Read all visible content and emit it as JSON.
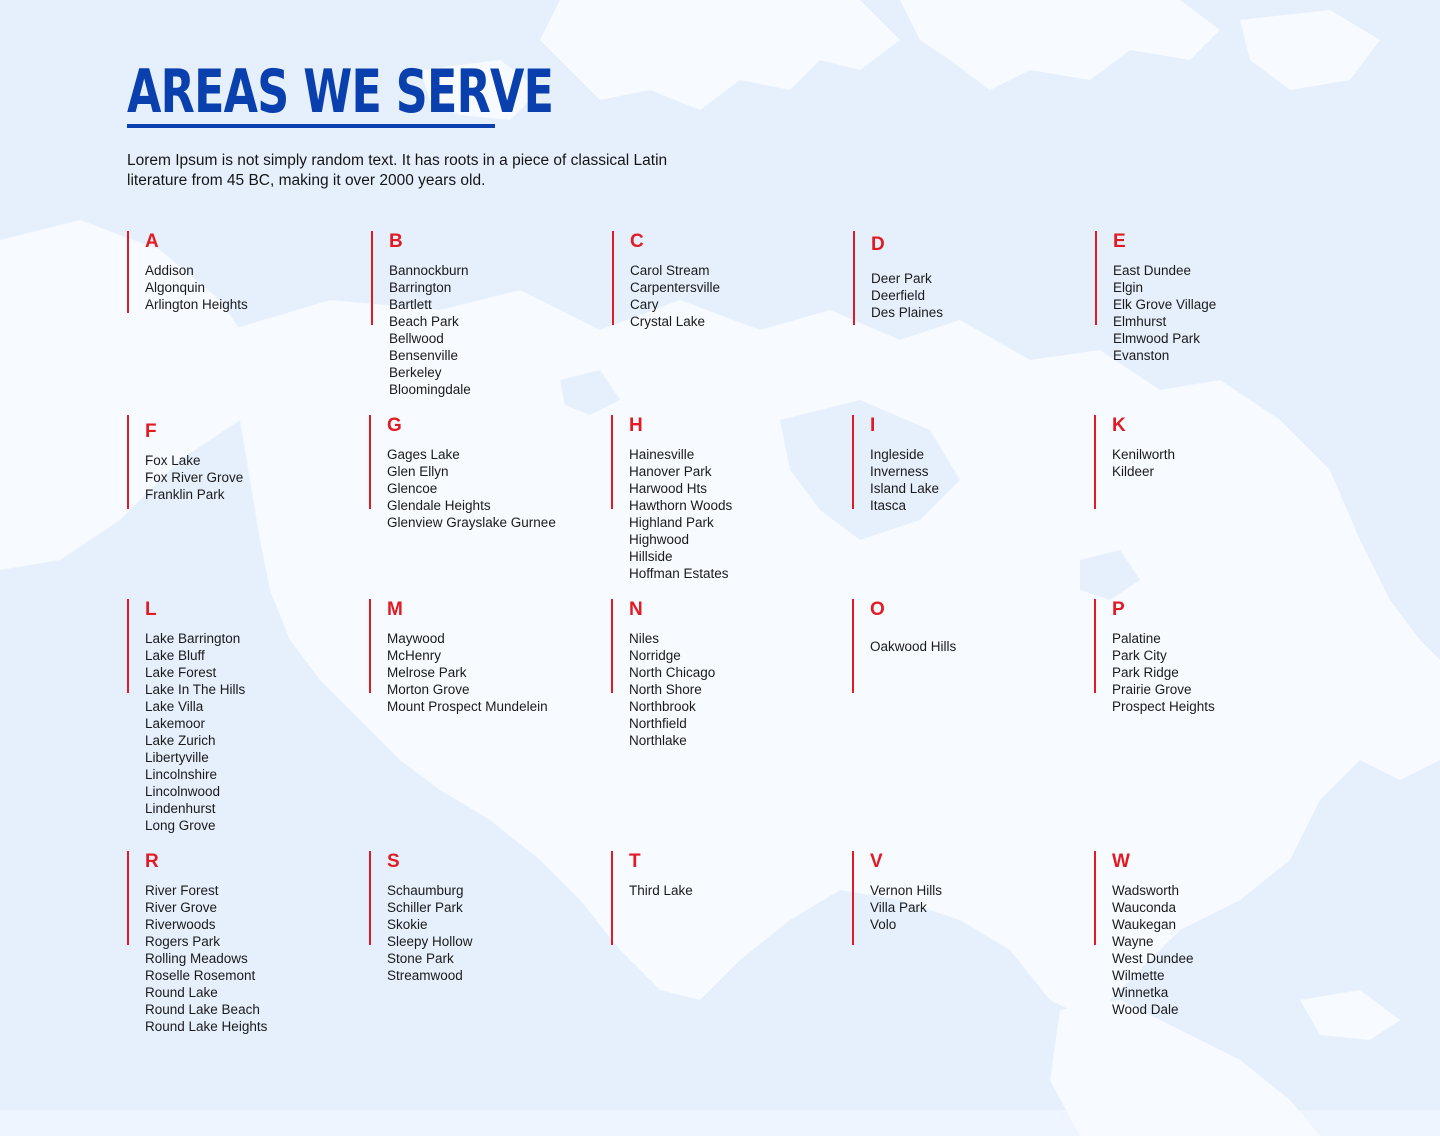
{
  "page": {
    "title": "AREAS WE SERVE",
    "intro": "Lorem Ipsum is not simply random text. It has roots in a piece of classical Latin literature from 45 BC, making it over 2000 years old."
  },
  "colors": {
    "title": "#0a3fae",
    "accent": "#e11b23",
    "background": "#e6f0fd",
    "map_land": "#f7faff"
  },
  "groups": [
    {
      "letter": "A",
      "places": [
        "Addison",
        "Algonquin",
        "Arlington Heights"
      ]
    },
    {
      "letter": "B",
      "places": [
        "Bannockburn",
        "Barrington",
        "Bartlett",
        "Beach Park",
        "Bellwood",
        "Bensenville",
        "Berkeley",
        "Bloomingdale"
      ]
    },
    {
      "letter": "C",
      "places": [
        "Carol Stream",
        "Carpentersville",
        "Cary",
        "Crystal Lake"
      ]
    },
    {
      "letter": "D",
      "places": [
        "Deer Park",
        "Deerfield",
        "Des Plaines"
      ]
    },
    {
      "letter": "E",
      "places": [
        "East Dundee",
        "Elgin",
        "Elk Grove Village",
        "Elmhurst",
        "Elmwood Park",
        "Evanston"
      ]
    },
    {
      "letter": "F",
      "places": [
        "Fox Lake",
        "Fox River Grove",
        "Franklin Park"
      ]
    },
    {
      "letter": "G",
      "places": [
        "Gages Lake",
        "Glen Ellyn",
        "Glencoe",
        "Glendale Heights",
        "Glenview Grayslake Gurnee"
      ]
    },
    {
      "letter": "H",
      "places": [
        "Hainesville",
        "Hanover Park",
        "Harwood Hts",
        "Hawthorn Woods",
        "Highland Park",
        "Highwood",
        "Hillside",
        "Hoffman Estates"
      ]
    },
    {
      "letter": "I",
      "places": [
        "Ingleside",
        "Inverness",
        "Island Lake",
        "Itasca"
      ]
    },
    {
      "letter": "K",
      "places": [
        "Kenilworth",
        "Kildeer"
      ]
    },
    {
      "letter": "L",
      "places": [
        "Lake Barrington",
        "Lake Bluff",
        "Lake Forest",
        "Lake In The Hills",
        "Lake Villa",
        "Lakemoor",
        "Lake Zurich",
        "Libertyville",
        "Lincolnshire",
        "Lincolnwood",
        "Lindenhurst",
        "Long Grove"
      ]
    },
    {
      "letter": "M",
      "places": [
        "Maywood",
        "McHenry",
        "Melrose Park",
        "Morton Grove",
        "Mount Prospect Mundelein"
      ]
    },
    {
      "letter": "N",
      "places": [
        "Niles",
        "Norridge",
        "North Chicago",
        "North Shore",
        "Northbrook",
        "Northfield",
        "Northlake"
      ]
    },
    {
      "letter": "O",
      "places": [
        "Oakwood Hills"
      ]
    },
    {
      "letter": "P",
      "places": [
        "Palatine",
        "Park City",
        "Park Ridge",
        "Prairie Grove",
        "Prospect Heights"
      ]
    },
    {
      "letter": "R",
      "places": [
        "River Forest",
        "River Grove",
        "Riverwoods",
        "Rogers Park",
        "Rolling Meadows",
        "Roselle Rosemont",
        "Round Lake",
        "Round Lake Beach",
        "Round Lake Heights"
      ]
    },
    {
      "letter": "S",
      "places": [
        "Schaumburg",
        "Schiller Park",
        "Skokie",
        "Sleepy Hollow",
        "Stone Park",
        "Streamwood"
      ]
    },
    {
      "letter": "T",
      "places": [
        "Third Lake"
      ]
    },
    {
      "letter": "V",
      "places": [
        "Vernon Hills",
        "Villa Park",
        "Volo"
      ]
    },
    {
      "letter": "W",
      "places": [
        "Wadsworth",
        "Wauconda",
        "Waukegan",
        "Wayne",
        "West Dundee",
        "Wilmette",
        "Winnetka",
        "Wood Dale"
      ]
    }
  ]
}
